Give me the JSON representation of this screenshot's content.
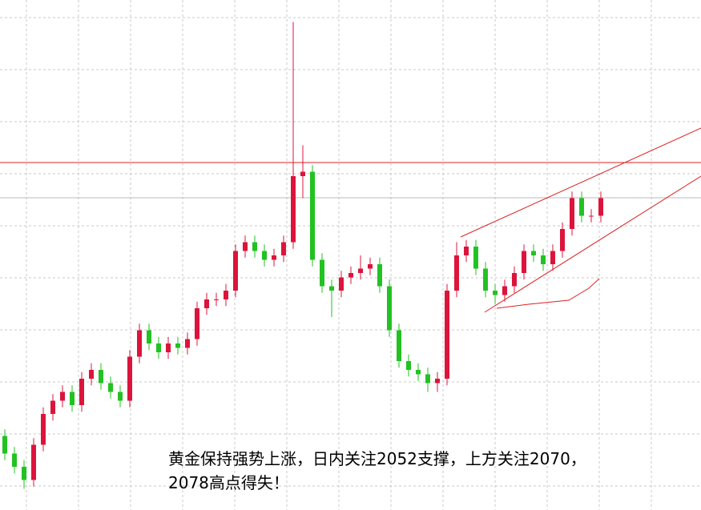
{
  "chart_data": {
    "type": "candlestick",
    "annotation": [
      "黄金保持强势上涨，日内关注2052支撑，上方关注2070，",
      "2078高点得失！"
    ],
    "ylim": [
      2000,
      2115
    ],
    "up_color": "#dc143c",
    "down_color": "#22c222",
    "open": [
      2016,
      2012,
      2009,
      2006,
      2014,
      2021,
      2024,
      2026,
      2023,
      2029,
      2031,
      2028,
      2026,
      2024,
      2034,
      2040,
      2037,
      2035,
      2037,
      2036,
      2038,
      2045,
      2047,
      2047,
      2049,
      2058,
      2060,
      2058,
      2056,
      2057,
      2060,
      2075,
      2076,
      2056,
      2050,
      2049,
      2052,
      2053,
      2054,
      2055,
      2050,
      2040,
      2033,
      2031,
      2030,
      2028,
      2029,
      2049,
      2057,
      2059,
      2054,
      2049,
      2048,
      2050,
      2053,
      2058,
      2057,
      2055,
      2058,
      2063,
      2070,
      2066,
      2066
    ],
    "high": [
      2017.5,
      2013.5,
      2010.5,
      2015.5,
      2022.5,
      2025.5,
      2027.5,
      2027.5,
      2030.5,
      2032.5,
      2032.5,
      2029.5,
      2027.5,
      2035.5,
      2041.5,
      2041.5,
      2038.5,
      2038.5,
      2038.5,
      2039.5,
      2046.5,
      2048.5,
      2048.5,
      2050.5,
      2059.5,
      2061.5,
      2061.5,
      2059.5,
      2058.5,
      2061.5,
      2110,
      2082,
      2077.5,
      2057.5,
      2051.5,
      2053.5,
      2054.5,
      2057,
      2056.5,
      2056.5,
      2051.5,
      2041.5,
      2034.5,
      2032.5,
      2031.5,
      2030.5,
      2050.5,
      2060,
      2060.5,
      2060.5,
      2055.5,
      2050.5,
      2051.5,
      2054.5,
      2059.5,
      2059.5,
      2058.5,
      2059.5,
      2064.5,
      2071.5,
      2071.5,
      2067.5,
      2071.5
    ],
    "low": [
      2010.5,
      2007.5,
      2004,
      2004.5,
      2012.5,
      2019.5,
      2022.5,
      2021.5,
      2021.5,
      2027.5,
      2026.5,
      2024.5,
      2022.5,
      2022.5,
      2032.5,
      2035.5,
      2033.5,
      2033.5,
      2034.5,
      2034.5,
      2036.5,
      2043.5,
      2045.5,
      2045.5,
      2047.5,
      2056.5,
      2056.5,
      2054.5,
      2054.5,
      2055.5,
      2058.5,
      2070,
      2054.5,
      2048.5,
      2043,
      2047.5,
      2050.5,
      2051.5,
      2052.5,
      2048.5,
      2038.5,
      2031.5,
      2029.5,
      2028.5,
      2026,
      2026,
      2027.5,
      2047.5,
      2055.5,
      2052.5,
      2047.5,
      2046,
      2046.5,
      2048.5,
      2051.5,
      2055.5,
      2053.5,
      2053.5,
      2056.5,
      2061.5,
      2064.5,
      2064.5,
      2064.5
    ],
    "close": [
      2012,
      2009,
      2006,
      2014,
      2021,
      2024,
      2026,
      2023,
      2029,
      2031,
      2028,
      2026,
      2024,
      2034,
      2040,
      2037,
      2035,
      2037,
      2036,
      2038,
      2045,
      2047,
      2047,
      2049,
      2058,
      2060,
      2058,
      2056,
      2057,
      2060,
      2075,
      2076,
      2056,
      2050,
      2049,
      2052,
      2053,
      2054,
      2055,
      2050,
      2040,
      2033,
      2031,
      2030,
      2028,
      2029,
      2049,
      2057,
      2059,
      2054,
      2049,
      2048,
      2050,
      2053,
      2058,
      2057,
      2055,
      2058,
      2063,
      2070,
      2066,
      2066,
      2070
    ]
  }
}
